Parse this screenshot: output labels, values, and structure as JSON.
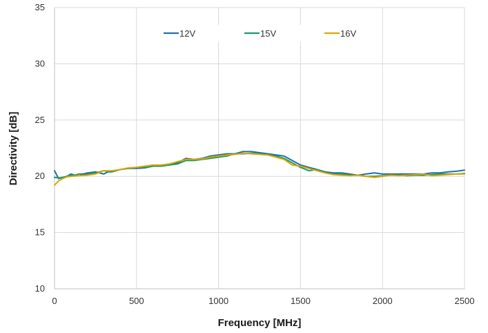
{
  "chart_data": {
    "type": "line",
    "title": "",
    "xlabel": "Frequency [MHz]",
    "ylabel": "Directivity [dB]",
    "xlim": [
      0,
      2500
    ],
    "ylim": [
      10,
      35
    ],
    "xticks": [
      0,
      500,
      1000,
      1500,
      2000,
      2500
    ],
    "yticks": [
      10,
      15,
      20,
      25,
      30,
      35
    ],
    "grid": true,
    "legend_position": "top-center",
    "series": [
      {
        "name": "12V",
        "color": "#1f6fa8",
        "x": [
          0,
          25,
          50,
          75,
          100,
          125,
          150,
          175,
          200,
          250,
          275,
          300,
          325,
          350,
          400,
          450,
          500,
          550,
          600,
          650,
          700,
          750,
          800,
          850,
          900,
          950,
          1000,
          1050,
          1100,
          1150,
          1200,
          1250,
          1300,
          1350,
          1400,
          1450,
          1500,
          1550,
          1600,
          1650,
          1700,
          1750,
          1800,
          1850,
          1900,
          1950,
          2000,
          2050,
          2100,
          2150,
          2200,
          2250,
          2300,
          2350,
          2400,
          2450,
          2500
        ],
        "values": [
          20.5,
          19.8,
          19.9,
          20.0,
          20.2,
          20.1,
          20.2,
          20.2,
          20.3,
          20.4,
          20.3,
          20.2,
          20.4,
          20.4,
          20.6,
          20.7,
          20.7,
          20.75,
          20.9,
          21.0,
          21.0,
          21.2,
          21.6,
          21.5,
          21.6,
          21.8,
          21.9,
          22.0,
          22.0,
          22.2,
          22.2,
          22.1,
          22.0,
          21.9,
          21.8,
          21.4,
          21.0,
          20.8,
          20.6,
          20.4,
          20.3,
          20.3,
          20.2,
          20.1,
          20.2,
          20.3,
          20.2,
          20.2,
          20.2,
          20.2,
          20.2,
          20.2,
          20.3,
          20.3,
          20.4,
          20.45,
          20.55
        ]
      },
      {
        "name": "15V",
        "color": "#1a9a6a",
        "x": [
          0,
          25,
          50,
          75,
          100,
          125,
          150,
          175,
          200,
          250,
          300,
          350,
          400,
          450,
          500,
          550,
          600,
          650,
          700,
          750,
          800,
          850,
          900,
          950,
          1000,
          1050,
          1100,
          1150,
          1200,
          1250,
          1300,
          1350,
          1400,
          1450,
          1500,
          1550,
          1600,
          1650,
          1700,
          1750,
          1800,
          1850,
          1900,
          1950,
          2000,
          2050,
          2100,
          2150,
          2200,
          2250,
          2300,
          2350,
          2400,
          2450,
          2500
        ],
        "values": [
          19.9,
          19.85,
          19.9,
          20.0,
          20.1,
          20.1,
          20.2,
          20.1,
          20.2,
          20.3,
          20.5,
          20.4,
          20.6,
          20.7,
          20.8,
          20.8,
          20.9,
          20.9,
          21.0,
          21.1,
          21.4,
          21.4,
          21.5,
          21.6,
          21.7,
          21.8,
          22.0,
          22.0,
          22.05,
          22.0,
          21.9,
          21.8,
          21.6,
          21.2,
          20.8,
          20.5,
          20.6,
          20.3,
          20.2,
          20.2,
          20.1,
          20.1,
          20.0,
          20.0,
          20.05,
          20.1,
          20.1,
          20.05,
          20.1,
          20.1,
          20.15,
          20.2,
          20.2,
          20.2,
          20.25
        ]
      },
      {
        "name": "16V",
        "color": "#e0a500",
        "x": [
          0,
          25,
          50,
          75,
          100,
          150,
          200,
          250,
          300,
          350,
          400,
          450,
          500,
          550,
          600,
          650,
          700,
          750,
          800,
          850,
          900,
          950,
          1000,
          1050,
          1100,
          1150,
          1200,
          1250,
          1300,
          1350,
          1400,
          1450,
          1500,
          1550,
          1600,
          1650,
          1700,
          1750,
          1800,
          1850,
          1900,
          1950,
          2000,
          2050,
          2100,
          2150,
          2200,
          2250,
          2300,
          2350,
          2400,
          2450,
          2500
        ],
        "values": [
          19.2,
          19.6,
          19.8,
          19.95,
          20.0,
          20.05,
          20.1,
          20.2,
          20.5,
          20.5,
          20.6,
          20.75,
          20.8,
          20.9,
          21.0,
          21.0,
          21.1,
          21.3,
          21.5,
          21.5,
          21.55,
          21.7,
          21.8,
          21.9,
          21.95,
          22.05,
          22.0,
          21.95,
          21.9,
          21.7,
          21.5,
          21.0,
          20.9,
          20.7,
          20.5,
          20.3,
          20.15,
          20.1,
          20.05,
          20.1,
          20.0,
          19.9,
          20.0,
          20.1,
          20.05,
          20.1,
          20.15,
          20.2,
          20.05,
          20.1,
          20.15,
          20.2,
          20.2
        ]
      }
    ]
  }
}
